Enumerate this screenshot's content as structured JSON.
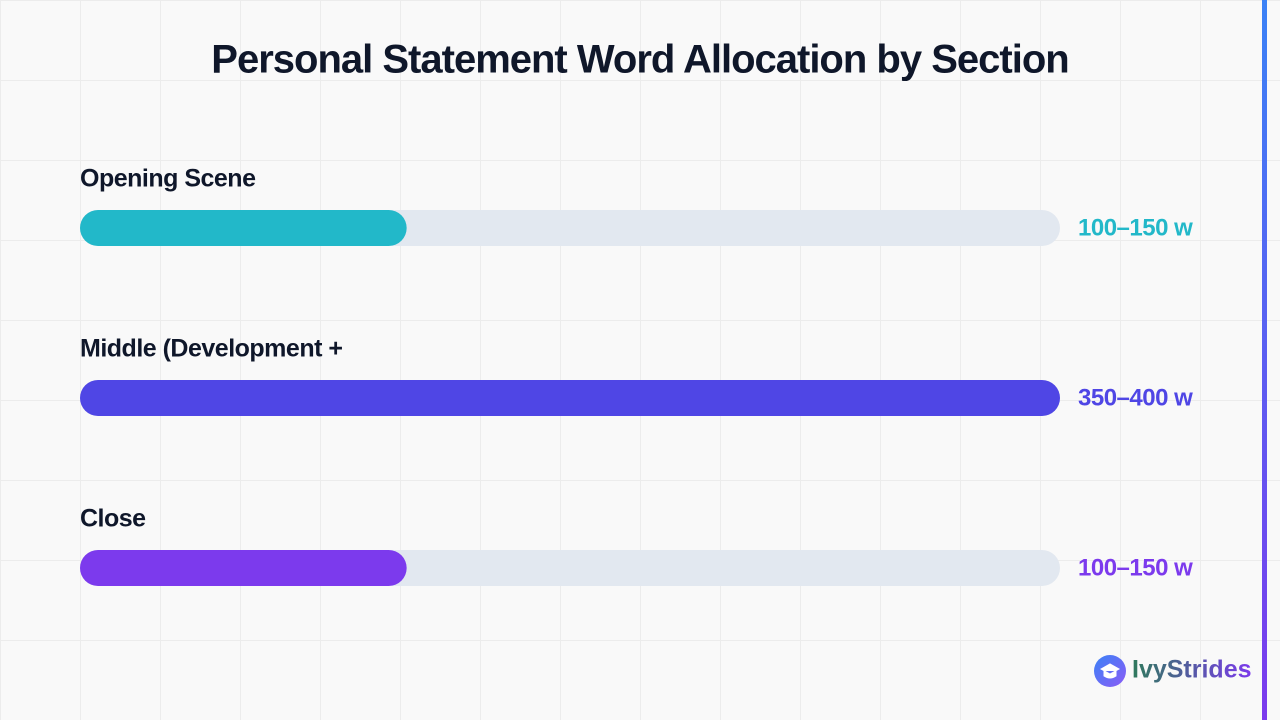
{
  "chart_data": {
    "type": "hbar",
    "title": "Personal Statement Word Allocation by Section",
    "categories": [
      "Opening Scene",
      "Middle (Development +",
      "Close"
    ],
    "values": [
      125,
      375,
      125
    ],
    "value_labels": [
      "100–150 w",
      "350–400 w",
      "100–150 w"
    ],
    "colors": [
      "#22b8c9",
      "#4f46e5",
      "#7c3aed"
    ],
    "track_color": "#e2e8f0",
    "xlim": [
      0,
      375
    ]
  },
  "brand": {
    "name": "IvyStrides"
  }
}
